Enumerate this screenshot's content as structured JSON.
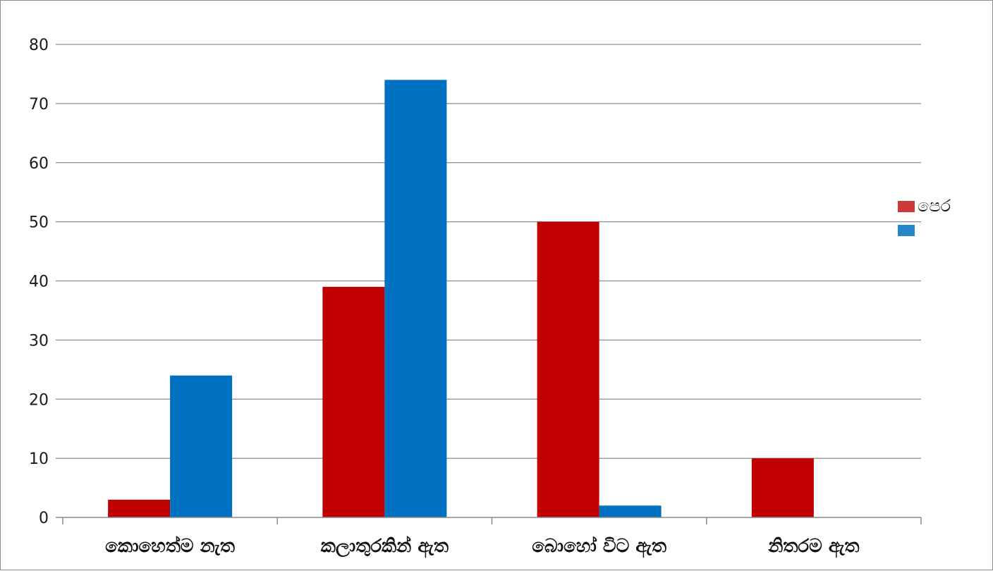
{
  "chart_data": {
    "type": "bar",
    "categories": [
      "කොහෙත්ම නැත",
      "කලාතුරකින් ඇත",
      "බොහෝ විට ඇත",
      "නිතරම ඇත"
    ],
    "series": [
      {
        "name": "පෙර",
        "color": "#c00000",
        "values": [
          3,
          39,
          50,
          10
        ]
      },
      {
        "name": "",
        "color": "#0070c0",
        "values": [
          24,
          74,
          2,
          0
        ]
      }
    ],
    "ylim": [
      0,
      80
    ],
    "yticks": [
      0,
      10,
      20,
      30,
      40,
      50,
      60,
      70,
      80
    ],
    "grid": true,
    "legend": "right",
    "title": "",
    "xlabel": "",
    "ylabel": ""
  }
}
